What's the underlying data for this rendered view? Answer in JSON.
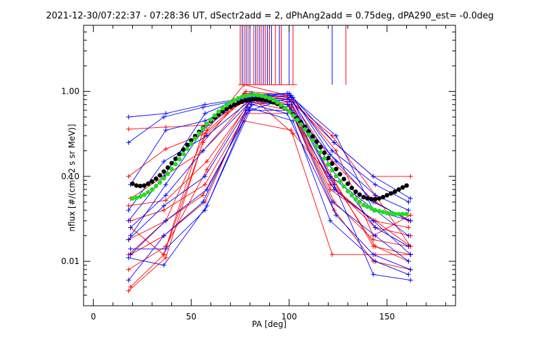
{
  "chart_data": {
    "type": "line",
    "title": "2021-12-30/07:22:37 - 07:28:36 UT, dSectr2add = 2, dPhAng2add = 0.75deg, dPA290_est=  -0.0deg",
    "xlabel": "PA [deg]",
    "ylabel": "nflux [#/(cm^2 s sr MeV)]",
    "xlim": [
      -5,
      185
    ],
    "ylim": [
      0.003,
      6.0
    ],
    "y_scale": "log",
    "grid": false,
    "x_ticks": [
      0,
      50,
      100,
      150
    ],
    "x_tick_labels": [
      "0",
      "50",
      "100",
      "150"
    ],
    "y_ticks": [
      0.01,
      0.1,
      1.0
    ],
    "y_tick_labels": [
      "0.01",
      "0.10",
      "1.00"
    ],
    "colors": {
      "red_series": "#ff0000",
      "blue_series": "#0000ff",
      "fit_black": "#000000",
      "fit_green": "#22dd22"
    },
    "vertical_markers": {
      "y_bottom": 1.2,
      "y_top": 6.0,
      "red_x": [
        75,
        77,
        79,
        82,
        84,
        86,
        88,
        90,
        93,
        96,
        102,
        129
      ],
      "blue_x": [
        76,
        78,
        80,
        83,
        85,
        87,
        89,
        91,
        95,
        100,
        122
      ]
    },
    "series": [
      {
        "color": "red",
        "x": [
          18,
          37,
          57,
          77,
          99,
          123,
          143,
          162
        ],
        "y": [
          0.36,
          0.38,
          0.4,
          0.95,
          0.85,
          0.25,
          0.1,
          0.1
        ]
      },
      {
        "color": "red",
        "x": [
          18,
          37,
          57,
          78,
          100,
          122,
          144,
          162
        ],
        "y": [
          0.1,
          0.21,
          0.32,
          0.9,
          0.8,
          0.3,
          0.06,
          0.015
        ]
      },
      {
        "color": "red",
        "x": [
          19,
          36,
          56,
          79,
          101,
          121,
          143,
          161
        ],
        "y": [
          0.055,
          0.1,
          0.2,
          0.8,
          0.7,
          0.08,
          0.03,
          0.025
        ]
      },
      {
        "color": "red",
        "x": [
          18,
          37,
          58,
          80,
          100,
          124,
          144,
          162
        ],
        "y": [
          0.045,
          0.052,
          0.15,
          0.75,
          0.6,
          0.07,
          0.025,
          0.02
        ]
      },
      {
        "color": "red",
        "x": [
          19,
          36,
          57,
          78,
          102,
          123,
          143,
          161
        ],
        "y": [
          0.03,
          0.04,
          0.08,
          0.55,
          0.55,
          0.05,
          0.018,
          0.015
        ]
      },
      {
        "color": "red",
        "x": [
          18,
          37,
          56,
          77,
          101,
          122,
          144,
          162
        ],
        "y": [
          0.018,
          0.03,
          0.06,
          0.45,
          0.35,
          0.012,
          0.012,
          0.012
        ]
      },
      {
        "color": "red",
        "x": [
          19,
          36,
          57,
          79,
          99,
          123,
          143,
          162
        ],
        "y": [
          0.012,
          0.02,
          0.05,
          0.7,
          0.75,
          0.04,
          0.01,
          0.008
        ]
      },
      {
        "color": "red",
        "x": [
          18,
          37,
          58,
          81,
          102,
          121,
          144,
          161
        ],
        "y": [
          0.008,
          0.015,
          0.12,
          0.85,
          0.32,
          0.1,
          0.015,
          0.01
        ]
      },
      {
        "color": "red",
        "x": [
          19,
          36,
          56,
          78,
          100,
          124,
          143,
          162
        ],
        "y": [
          0.005,
          0.012,
          0.25,
          1.0,
          0.9,
          0.2,
          0.02,
          0.035
        ]
      },
      {
        "color": "red",
        "x": [
          18,
          37,
          57,
          80,
          101,
          122,
          144,
          161
        ],
        "y": [
          0.0045,
          0.011,
          0.3,
          0.95,
          0.8,
          0.15,
          0.05,
          0.03
        ]
      },
      {
        "color": "red",
        "x": [
          18,
          37,
          58,
          77,
          99,
          123,
          143,
          162
        ],
        "y": [
          0.012,
          0.03,
          0.35,
          1.2,
          0.9,
          0.09,
          0.015,
          0.012
        ]
      },
      {
        "color": "red",
        "x": [
          19,
          36,
          57,
          79,
          101,
          121,
          144,
          162
        ],
        "y": [
          0.025,
          0.012,
          0.4,
          0.8,
          0.65,
          0.07,
          0.03,
          0.015
        ]
      },
      {
        "color": "blue",
        "x": [
          18,
          37,
          57,
          80,
          100,
          123,
          143,
          162
        ],
        "y": [
          0.5,
          0.55,
          0.7,
          0.85,
          0.95,
          0.25,
          0.1,
          0.055
        ]
      },
      {
        "color": "blue",
        "x": [
          18,
          36,
          56,
          81,
          101,
          122,
          144,
          161
        ],
        "y": [
          0.25,
          0.5,
          0.65,
          0.85,
          0.9,
          0.2,
          0.08,
          0.05
        ]
      },
      {
        "color": "blue",
        "x": [
          19,
          37,
          57,
          79,
          99,
          124,
          143,
          162
        ],
        "y": [
          0.08,
          0.35,
          0.45,
          0.8,
          0.7,
          0.15,
          0.05,
          0.03
        ]
      },
      {
        "color": "blue",
        "x": [
          18,
          36,
          58,
          82,
          102,
          121,
          144,
          161
        ],
        "y": [
          0.04,
          0.15,
          0.3,
          0.85,
          0.75,
          0.1,
          0.04,
          0.02
        ]
      },
      {
        "color": "blue",
        "x": [
          19,
          37,
          56,
          80,
          100,
          123,
          143,
          162
        ],
        "y": [
          0.025,
          0.06,
          0.2,
          0.75,
          0.7,
          0.07,
          0.03,
          0.012
        ]
      },
      {
        "color": "blue",
        "x": [
          18,
          36,
          57,
          78,
          101,
          122,
          144,
          161
        ],
        "y": [
          0.018,
          0.045,
          0.1,
          0.6,
          0.6,
          0.05,
          0.02,
          0.01
        ]
      },
      {
        "color": "blue",
        "x": [
          19,
          37,
          58,
          81,
          99,
          124,
          143,
          162
        ],
        "y": [
          0.012,
          0.03,
          0.07,
          0.7,
          0.55,
          0.035,
          0.012,
          0.008
        ]
      },
      {
        "color": "blue",
        "x": [
          18,
          36,
          56,
          79,
          102,
          121,
          144,
          161
        ],
        "y": [
          0.006,
          0.02,
          0.05,
          0.65,
          0.45,
          0.03,
          0.01,
          0.007
        ]
      },
      {
        "color": "blue",
        "x": [
          19,
          37,
          57,
          82,
          100,
          123,
          143,
          162
        ],
        "y": [
          0.014,
          0.014,
          0.04,
          0.85,
          0.8,
          0.08,
          0.007,
          0.006
        ]
      },
      {
        "color": "blue",
        "x": [
          18,
          36,
          58,
          80,
          101,
          122,
          144,
          161
        ],
        "y": [
          0.011,
          0.009,
          0.045,
          0.6,
          0.85,
          0.12,
          0.025,
          0.015
        ]
      },
      {
        "color": "blue",
        "x": [
          19,
          37,
          56,
          78,
          99,
          124,
          143,
          162
        ],
        "y": [
          0.02,
          0.08,
          0.35,
          0.9,
          0.95,
          0.3,
          0.04,
          0.03
        ]
      },
      {
        "color": "blue",
        "x": [
          18,
          36,
          57,
          81,
          102,
          121,
          144,
          161
        ],
        "y": [
          0.03,
          0.1,
          0.55,
          0.95,
          0.85,
          0.18,
          0.06,
          0.04
        ]
      }
    ],
    "fits": [
      {
        "color": "black",
        "x": [
          20,
          22,
          24,
          26,
          28,
          30,
          32,
          34,
          36,
          38,
          40,
          42,
          44,
          46,
          48,
          50,
          52,
          54,
          56,
          58,
          60,
          62,
          64,
          66,
          68,
          70,
          72,
          74,
          76,
          78,
          80,
          82,
          84,
          86,
          88,
          90,
          92,
          94,
          96,
          98,
          100,
          102,
          104,
          106,
          108,
          110,
          112,
          114,
          116,
          118,
          120,
          122,
          124,
          126,
          128,
          130,
          132,
          134,
          136,
          138,
          140,
          142,
          144,
          146,
          148,
          150,
          152,
          154,
          156,
          158,
          160
        ],
        "y": [
          0.082,
          0.078,
          0.077,
          0.078,
          0.082,
          0.087,
          0.094,
          0.103,
          0.114,
          0.127,
          0.143,
          0.161,
          0.183,
          0.207,
          0.235,
          0.265,
          0.298,
          0.334,
          0.372,
          0.412,
          0.454,
          0.496,
          0.539,
          0.581,
          0.622,
          0.661,
          0.697,
          0.729,
          0.757,
          0.78,
          0.796,
          0.806,
          0.809,
          0.804,
          0.792,
          0.772,
          0.745,
          0.712,
          0.673,
          0.63,
          0.583,
          0.533,
          0.483,
          0.433,
          0.384,
          0.338,
          0.295,
          0.256,
          0.221,
          0.19,
          0.164,
          0.141,
          0.122,
          0.106,
          0.093,
          0.082,
          0.073,
          0.066,
          0.061,
          0.057,
          0.055,
          0.054,
          0.054,
          0.055,
          0.057,
          0.06,
          0.063,
          0.066,
          0.07,
          0.074,
          0.078
        ]
      },
      {
        "color": "green",
        "x": [
          20,
          22,
          24,
          26,
          28,
          30,
          32,
          34,
          36,
          38,
          40,
          42,
          44,
          46,
          48,
          50,
          52,
          54,
          56,
          58,
          60,
          62,
          64,
          66,
          68,
          70,
          72,
          74,
          76,
          78,
          80,
          82,
          84,
          86,
          88,
          90,
          92,
          94,
          96,
          98,
          100,
          102,
          104,
          106,
          108,
          110,
          112,
          114,
          116,
          118,
          120,
          122,
          124,
          126,
          128,
          130,
          132,
          134,
          136,
          138,
          140,
          142,
          144,
          146,
          148,
          150,
          152,
          154,
          156,
          158,
          160
        ],
        "y": [
          0.055,
          0.056,
          0.058,
          0.061,
          0.065,
          0.07,
          0.077,
          0.085,
          0.095,
          0.107,
          0.122,
          0.139,
          0.159,
          0.183,
          0.211,
          0.243,
          0.279,
          0.32,
          0.365,
          0.414,
          0.466,
          0.521,
          0.578,
          0.635,
          0.69,
          0.742,
          0.789,
          0.83,
          0.863,
          0.888,
          0.903,
          0.909,
          0.904,
          0.889,
          0.864,
          0.831,
          0.79,
          0.743,
          0.691,
          0.636,
          0.579,
          0.521,
          0.464,
          0.409,
          0.357,
          0.309,
          0.265,
          0.226,
          0.192,
          0.163,
          0.138,
          0.118,
          0.101,
          0.087,
          0.076,
          0.067,
          0.06,
          0.054,
          0.05,
          0.046,
          0.044,
          0.042,
          0.04,
          0.039,
          0.038,
          0.037,
          0.037,
          0.036,
          0.036,
          0.036,
          0.036
        ]
      }
    ]
  }
}
